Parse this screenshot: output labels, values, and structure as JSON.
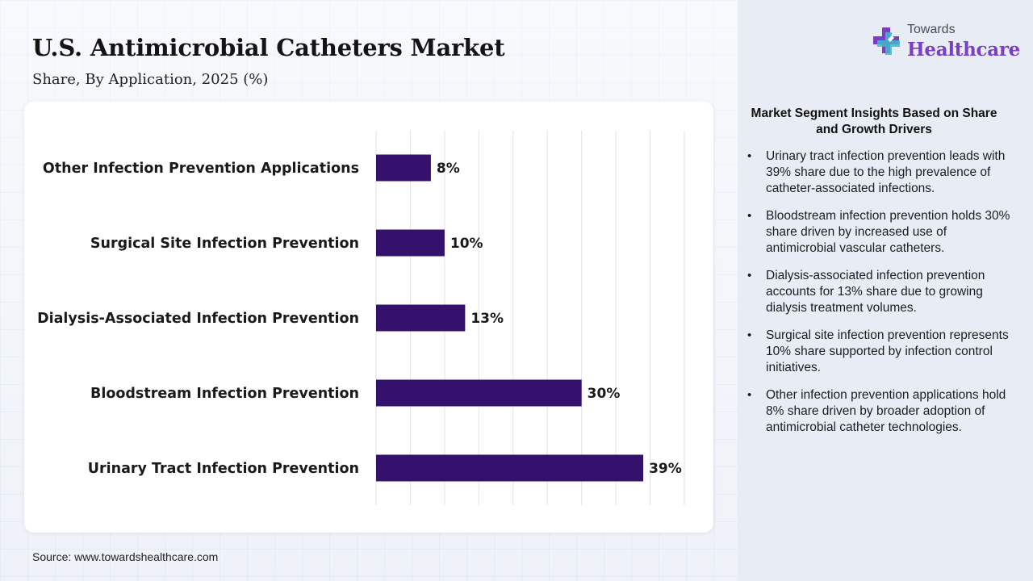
{
  "header": {
    "title": "U.S. Antimicrobial Catheters Market",
    "subtitle": "Share, By Application, 2025 (%)"
  },
  "logo": {
    "top_text": "Towards",
    "main_text": "Healthcare"
  },
  "colors": {
    "bar": "#35116e",
    "logo_purple": "#7b3fc6",
    "logo_teal": "#3fb8c6"
  },
  "chart_data": {
    "type": "bar",
    "orientation": "horizontal",
    "categories": [
      "Other Infection Prevention Applications",
      "Surgical Site Infection Prevention",
      "Dialysis-Associated Infection Prevention",
      "Bloodstream Infection Prevention",
      "Urinary Tract Infection Prevention"
    ],
    "values": [
      8,
      10,
      13,
      30,
      39
    ],
    "value_labels": [
      "8%",
      "10%",
      "13%",
      "30%",
      "39%"
    ],
    "xlim": [
      0,
      45
    ],
    "grid": true,
    "legend": "none"
  },
  "insights": {
    "title": "Market Segment Insights Based on Share and Growth Drivers",
    "items": [
      "Urinary tract infection prevention leads with 39% share due to the high prevalence of catheter-associated infections.",
      "Bloodstream infection prevention holds 30% share driven by increased use of antimicrobial vascular catheters.",
      "Dialysis-associated infection prevention accounts for 13% share due to growing dialysis treatment volumes.",
      "Surgical site infection prevention represents 10% share supported by infection control initiatives.",
      "Other infection prevention applications hold 8% share driven by broader adoption of antimicrobial catheter technologies."
    ]
  },
  "footer": {
    "source": "Source: www.towardshealthcare.com"
  }
}
